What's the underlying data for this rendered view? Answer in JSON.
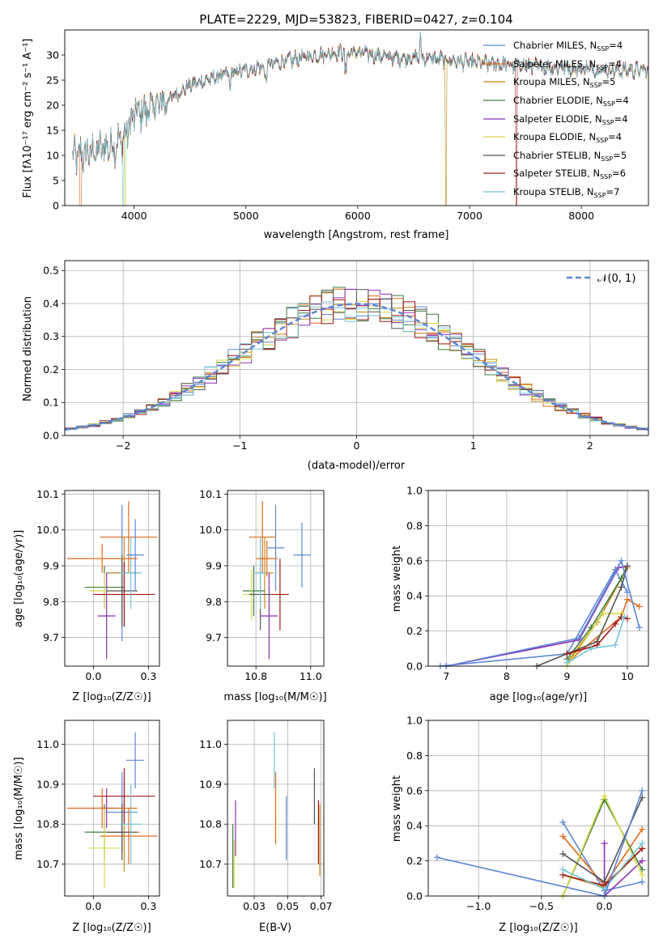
{
  "colors": [
    "#5b87d6",
    "#e06a1a",
    "#c8881a",
    "#3f7f3f",
    "#8e2fb8",
    "#d9d94a",
    "#555555",
    "#a01818",
    "#73c6d6"
  ],
  "spectrum_panel": {
    "title": "PLATE=2229, MJD=53823, FIBERID=0427, z=0.104",
    "xlabel": "wavelength [Angstrom, rest frame]",
    "ylabel": "Flux [fλ10⁻¹⁷ erg cm⁻² s⁻¹ A⁻¹]",
    "legend": [
      {
        "label": "Chabrier MILES, N",
        "sub": "SSP",
        "n": "=4"
      },
      {
        "label": "Salpeter MILES, N",
        "sub": "SSP",
        "n": "=4"
      },
      {
        "label": "Kroupa MILES, N",
        "sub": "SSP",
        "n": "=5"
      },
      {
        "label": "Chabrier ELODIE, N",
        "sub": "SSP",
        "n": "=4"
      },
      {
        "label": "Salpeter ELODIE, N",
        "sub": "SSP",
        "n": "=4"
      },
      {
        "label": "Kroupa ELODIE, N",
        "sub": "SSP",
        "n": "=4"
      },
      {
        "label": "Chabrier STELIB, N",
        "sub": "SSP",
        "n": "=5"
      },
      {
        "label": "Salpeter STELIB, N",
        "sub": "SSP",
        "n": "=6"
      },
      {
        "label": "Kroupa STELIB, N",
        "sub": "SSP",
        "n": "=7"
      }
    ]
  },
  "histogram_panel": {
    "xlabel": "(data-model)/error",
    "ylabel": "Normed distribution",
    "legend_label": "𝒩(0, 1)"
  },
  "age_vs_Z_panel": {
    "xlabel": "Z [log₁₀(Z/Z☉)]",
    "ylabel": "age  [log₁₀(age/yr)]"
  },
  "age_vs_mass_panel": {
    "xlabel": "mass [log₁₀(M/M☉)]"
  },
  "weight_vs_age_panel": {
    "xlabel": "age  [log₁₀(age/yr)]",
    "ylabel": "mass weight"
  },
  "mass_vs_Z_panel": {
    "xlabel": "Z [log₁₀(Z/Z☉)]",
    "ylabel": "mass [log₁₀(M/M☉)]"
  },
  "mass_vs_ebv_panel": {
    "xlabel": "E(B-V)"
  },
  "weight_vs_Z_panel": {
    "xlabel": "Z [log₁₀(Z/Z☉)]",
    "ylabel": "mass weight"
  },
  "chart_data": [
    {
      "type": "line",
      "title": "PLATE=2229, MJD=53823, FIBERID=0427, z=0.104",
      "xlabel": "wavelength [Angstrom, rest frame]",
      "xlim": [
        3380,
        8600
      ],
      "ylim": [
        0,
        35
      ],
      "xticks": [
        4000,
        5000,
        6000,
        7000,
        8000
      ],
      "yticks": [
        0,
        5,
        10,
        15,
        20,
        25,
        30
      ],
      "continuum": {
        "x": [
          3450,
          3600,
          3800,
          3900,
          4000,
          4300,
          4500,
          4800,
          5000,
          5200,
          5500,
          5800,
          6000,
          6300,
          6600,
          7000,
          7400,
          7800,
          8300,
          8600
        ],
        "y": [
          9.5,
          10.5,
          12,
          13,
          18,
          21,
          24,
          26,
          27,
          28,
          29.5,
          30.5,
          30.5,
          29.5,
          29.5,
          28.5,
          28,
          27.5,
          27,
          27
        ]
      },
      "legend_placement": "right",
      "grid": false
    },
    {
      "type": "bar",
      "xlabel": "(data-model)/error",
      "ylabel": "Normed distribution",
      "xlim": [
        -2.5,
        2.5
      ],
      "ylim": [
        0,
        0.53
      ],
      "xticks": [
        -2,
        -1,
        0,
        1,
        2
      ],
      "yticks": [
        0.0,
        0.1,
        0.2,
        0.3,
        0.4,
        0.5
      ],
      "bin_width": 0.1,
      "reference_curve": "normal(0,1)",
      "grid": true,
      "legend_placement": "top-right"
    },
    {
      "type": "scatter",
      "xlabel": "Z [log₁₀(Z/Z☉)]",
      "ylabel": "age  [log₁₀(age/yr)]",
      "xlim": [
        -0.13,
        0.3
      ],
      "ylim": [
        9.62,
        10.11
      ],
      "xticks": [
        0.0,
        0.25
      ],
      "yticks": [
        9.7,
        9.8,
        9.9,
        10.0,
        10.1
      ],
      "points": [
        {
          "x": 0.13,
          "y": 9.88,
          "xerr": 0.07,
          "yerr": 0.19
        },
        {
          "x": 0.16,
          "y": 9.98,
          "xerr": 0.13,
          "yerr": 0.1
        },
        {
          "x": 0.14,
          "y": 9.88,
          "xerr": 0.07,
          "yerr": 0.1
        },
        {
          "x": 0.05,
          "y": 9.84,
          "xerr": 0.09,
          "yerr": 0.06
        },
        {
          "x": 0.06,
          "y": 9.76,
          "xerr": 0.04,
          "yerr": 0.12
        },
        {
          "x": 0.05,
          "y": 9.83,
          "xerr": 0.07,
          "yerr": 0.05
        },
        {
          "x": 0.13,
          "y": 9.83,
          "xerr": 0.07,
          "yerr": 0.1
        },
        {
          "x": 0.14,
          "y": 9.82,
          "xerr": 0.14,
          "yerr": 0.09
        },
        {
          "x": 0.17,
          "y": 9.88,
          "xerr": 0.05,
          "yerr": 0.1
        },
        {
          "x": 0.19,
          "y": 9.93,
          "xerr": 0.04,
          "yerr": 0.1
        },
        {
          "x": 0.04,
          "y": 9.92,
          "xerr": 0.16,
          "yerr": 0.04
        }
      ]
    },
    {
      "type": "scatter",
      "xlabel": "mass [log₁₀(M/M☉)]",
      "xlim": [
        10.62,
        11.06
      ],
      "ylim": [
        9.62,
        10.11
      ],
      "xticks": [
        10.75,
        11.0
      ],
      "yticks": [
        9.7,
        9.8,
        9.9,
        10.0,
        10.1
      ],
      "points": [
        {
          "x": 10.84,
          "y": 9.95,
          "xerr": 0.04,
          "yerr": 0.12
        },
        {
          "x": 10.78,
          "y": 9.98,
          "xerr": 0.06,
          "yerr": 0.1
        },
        {
          "x": 10.79,
          "y": 9.88,
          "xerr": 0.04,
          "yerr": 0.1
        },
        {
          "x": 10.74,
          "y": 9.83,
          "xerr": 0.05,
          "yerr": 0.07
        },
        {
          "x": 10.81,
          "y": 9.76,
          "xerr": 0.04,
          "yerr": 0.12
        },
        {
          "x": 10.73,
          "y": 9.82,
          "xerr": 0.04,
          "yerr": 0.07
        },
        {
          "x": 10.77,
          "y": 9.82,
          "xerr": 0.05,
          "yerr": 0.1
        },
        {
          "x": 10.86,
          "y": 9.82,
          "xerr": 0.04,
          "yerr": 0.1
        },
        {
          "x": 10.77,
          "y": 9.88,
          "xerr": 0.03,
          "yerr": 0.1
        },
        {
          "x": 10.96,
          "y": 9.93,
          "xerr": 0.04,
          "yerr": 0.09
        },
        {
          "x": 10.8,
          "y": 9.92,
          "xerr": 0.05,
          "yerr": 0.05
        }
      ]
    },
    {
      "type": "line",
      "xlabel": "age  [log₁₀(age/yr)]",
      "ylabel": "mass weight",
      "xlim": [
        6.7,
        10.35
      ],
      "ylim": [
        0,
        1.0
      ],
      "xticks": [
        7,
        8,
        9,
        10
      ],
      "yticks": [
        0.0,
        0.2,
        0.4,
        0.6,
        0.8,
        1.0
      ],
      "grid": true,
      "series": [
        {
          "x": [
            6.9,
            9.0,
            9.8,
            10.0
          ],
          "y": [
            0.0,
            0.07,
            0.55,
            0.42
          ]
        },
        {
          "x": [
            9.1,
            9.9,
            10.0,
            10.2
          ],
          "y": [
            0.05,
            0.28,
            0.38,
            0.34
          ]
        },
        {
          "x": [
            9.0,
            9.5,
            10.0
          ],
          "y": [
            0.02,
            0.25,
            0.56
          ]
        },
        {
          "x": [
            9.0,
            9.4,
            9.9,
            10.0
          ],
          "y": [
            0.04,
            0.22,
            0.5,
            0.57
          ]
        },
        {
          "x": [
            7.0,
            9.2,
            9.85,
            10.0
          ],
          "y": [
            0.0,
            0.15,
            0.56,
            0.57
          ]
        },
        {
          "x": [
            9.0,
            9.6,
            9.9
          ],
          "y": [
            0.0,
            0.3,
            0.3
          ]
        },
        {
          "x": [
            8.5,
            9.0,
            9.5,
            9.9,
            10.0
          ],
          "y": [
            0.0,
            0.07,
            0.14,
            0.45,
            0.57
          ]
        },
        {
          "x": [
            9.0,
            9.5,
            9.8,
            9.9,
            10.0
          ],
          "y": [
            0.07,
            0.12,
            0.24,
            0.28,
            0.27
          ]
        },
        {
          "x": [
            9.0,
            9.4,
            9.8,
            9.95
          ],
          "y": [
            0.02,
            0.1,
            0.12,
            0.28
          ]
        },
        {
          "x": [
            7.0,
            9.2,
            9.9,
            10.2
          ],
          "y": [
            0.0,
            0.16,
            0.6,
            0.22
          ]
        }
      ]
    },
    {
      "type": "scatter",
      "xlabel": "Z [log₁₀(Z/Z☉)]",
      "ylabel": "mass [log₁₀(M/M☉)]",
      "xlim": [
        -0.13,
        0.3
      ],
      "ylim": [
        10.62,
        11.06
      ],
      "xticks": [
        0.0,
        0.25
      ],
      "yticks": [
        10.7,
        10.8,
        10.9,
        11.0
      ],
      "points": [
        {
          "x": 0.13,
          "y": 10.83,
          "xerr": 0.07,
          "yerr": 0.1
        },
        {
          "x": 0.16,
          "y": 10.77,
          "xerr": 0.13,
          "yerr": 0.07
        },
        {
          "x": 0.14,
          "y": 10.78,
          "xerr": 0.07,
          "yerr": 0.1
        },
        {
          "x": 0.05,
          "y": 10.78,
          "xerr": 0.09,
          "yerr": 0.07
        },
        {
          "x": 0.06,
          "y": 10.84,
          "xerr": 0.04,
          "yerr": 0.05
        },
        {
          "x": 0.05,
          "y": 10.74,
          "xerr": 0.07,
          "yerr": 0.1
        },
        {
          "x": 0.13,
          "y": 10.78,
          "xerr": 0.07,
          "yerr": 0.07
        },
        {
          "x": 0.14,
          "y": 10.87,
          "xerr": 0.14,
          "yerr": 0.07
        },
        {
          "x": 0.17,
          "y": 10.8,
          "xerr": 0.05,
          "yerr": 0.1
        },
        {
          "x": 0.19,
          "y": 10.96,
          "xerr": 0.04,
          "yerr": 0.07
        },
        {
          "x": 0.04,
          "y": 10.84,
          "xerr": 0.16,
          "yerr": 0.05
        }
      ]
    },
    {
      "type": "scatter",
      "xlabel": "E(B-V)",
      "xlim": [
        0.005,
        0.077
      ],
      "ylim": [
        10.62,
        11.06
      ],
      "xticks": [
        0.025,
        0.05,
        0.075
      ],
      "yticks": [
        10.7,
        10.8,
        10.9,
        11.0
      ],
      "points": [
        {
          "x": 0.049,
          "y": 10.79,
          "yerr": 0.08
        },
        {
          "x": 0.041,
          "y": 10.84,
          "yerr": 0.09
        },
        {
          "x": 0.074,
          "y": 10.76,
          "yerr": 0.09
        },
        {
          "x": 0.009,
          "y": 10.72,
          "yerr": 0.08
        },
        {
          "x": 0.011,
          "y": 10.79,
          "yerr": 0.07
        },
        {
          "x": 0.01,
          "y": 10.7,
          "yerr": 0.06
        },
        {
          "x": 0.07,
          "y": 10.87,
          "yerr": 0.07
        },
        {
          "x": 0.073,
          "y": 10.78,
          "yerr": 0.08
        },
        {
          "x": 0.04,
          "y": 10.96,
          "yerr": 0.07
        }
      ]
    },
    {
      "type": "line",
      "xlabel": "Z [log₁₀(Z/Z☉)]",
      "ylabel": "mass weight",
      "xlim": [
        -1.4,
        0.35
      ],
      "ylim": [
        0,
        1.0
      ],
      "xticks": [
        -1.0,
        -0.5,
        0.0
      ],
      "yticks": [
        0.0,
        0.2,
        0.4,
        0.6,
        0.8,
        1.0
      ],
      "grid": true,
      "series": [
        {
          "x": [
            -0.33,
            0.0,
            0.3
          ],
          "y": [
            0.42,
            0.03,
            0.08
          ]
        },
        {
          "x": [
            -0.33,
            0.0,
            0.3
          ],
          "y": [
            0.34,
            0.06,
            0.38
          ]
        },
        {
          "x": [
            -0.33,
            0.0,
            0.3
          ],
          "y": [
            0.12,
            0.05,
            0.27
          ]
        },
        {
          "x": [
            -0.33,
            0.0,
            0.3
          ],
          "y": [
            0.0,
            0.55,
            0.15
          ]
        },
        {
          "x": [
            0.0,
            0.0,
            0.3
          ],
          "y": [
            0.3,
            0.0,
            0.2
          ]
        },
        {
          "x": [
            -0.33,
            0.0,
            0.3
          ],
          "y": [
            0.0,
            0.57,
            0.12
          ]
        },
        {
          "x": [
            -0.33,
            0.0,
            0.3
          ],
          "y": [
            0.24,
            0.08,
            0.56
          ]
        },
        {
          "x": [
            -0.33,
            0.0,
            0.3
          ],
          "y": [
            0.12,
            0.06,
            0.27
          ]
        },
        {
          "x": [
            -0.33,
            0.0,
            0.3
          ],
          "y": [
            0.15,
            0.04,
            0.3
          ]
        },
        {
          "x": [
            -1.33,
            0.0,
            0.3
          ],
          "y": [
            0.22,
            0.0,
            0.6
          ]
        }
      ]
    }
  ]
}
